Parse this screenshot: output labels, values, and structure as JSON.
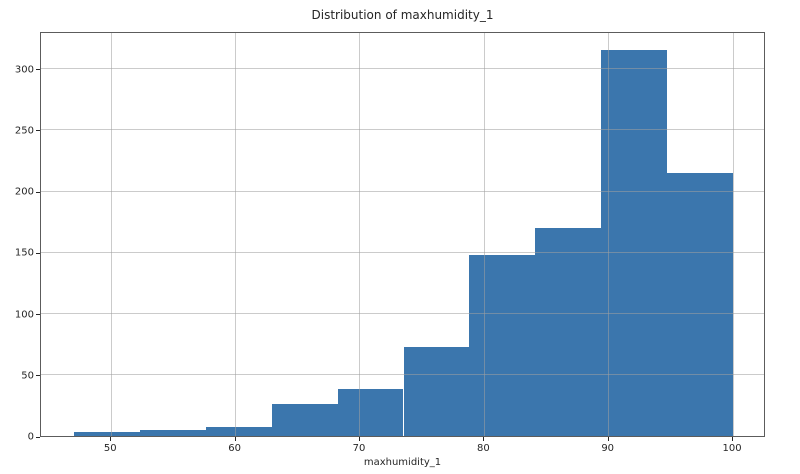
{
  "figure": {
    "background": "#ffffff"
  },
  "title": "Distribution of maxhumidity_1",
  "x_axis_label": "maxhumidity_1",
  "colors": {
    "bar": "#3B76AD",
    "grid": "rgba(160,160,160,0.55)",
    "spine": "#5c5c5c",
    "text": "#262626"
  },
  "chart_data": {
    "type": "bar",
    "subtype": "histogram",
    "title": "Distribution of maxhumidity_1",
    "xlabel": "maxhumidity_1",
    "ylabel": "",
    "bin_edges": [
      47.0,
      52.3,
      57.6,
      62.9,
      68.2,
      73.5,
      78.8,
      84.1,
      89.4,
      94.7,
      100.0
    ],
    "counts": [
      3,
      5,
      7,
      26,
      38,
      73,
      148,
      170,
      315,
      215
    ],
    "xlim": [
      44.35,
      102.65
    ],
    "ylim": [
      0,
      330.75
    ],
    "xticks": [
      50,
      60,
      70,
      80,
      90,
      100
    ],
    "yticks": [
      0,
      50,
      100,
      150,
      200,
      250,
      300
    ],
    "grid": true,
    "grid_over_bars": true,
    "legend": "none",
    "bar_color": "#3B76AD"
  }
}
